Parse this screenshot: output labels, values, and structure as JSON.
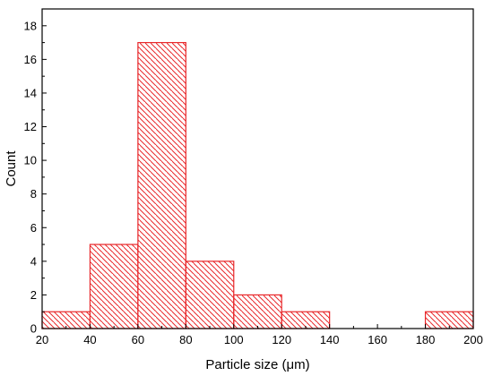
{
  "chart_data": {
    "type": "bar",
    "subtype": "histogram",
    "bins": [
      {
        "start": 20,
        "end": 40,
        "count": 1
      },
      {
        "start": 40,
        "end": 60,
        "count": 5
      },
      {
        "start": 60,
        "end": 80,
        "count": 17
      },
      {
        "start": 80,
        "end": 100,
        "count": 4
      },
      {
        "start": 100,
        "end": 120,
        "count": 2
      },
      {
        "start": 120,
        "end": 140,
        "count": 1
      },
      {
        "start": 140,
        "end": 160,
        "count": 0
      },
      {
        "start": 160,
        "end": 180,
        "count": 0
      },
      {
        "start": 180,
        "end": 200,
        "count": 1
      }
    ],
    "xlabel": "Particle size (μm)",
    "ylabel": "Count",
    "xlim": [
      20,
      200
    ],
    "ylim": [
      0,
      19
    ],
    "xticks": [
      20,
      40,
      60,
      80,
      100,
      120,
      140,
      160,
      180,
      200
    ],
    "yticks": [
      0,
      2,
      4,
      6,
      8,
      10,
      12,
      14,
      16,
      18
    ],
    "grid": false,
    "legend": "none",
    "colors": {
      "bar_edge": "#e8272a",
      "bar_hatch": "#e8272a",
      "axis": "#000000"
    },
    "fill_pattern": "diagonal-hatch"
  }
}
